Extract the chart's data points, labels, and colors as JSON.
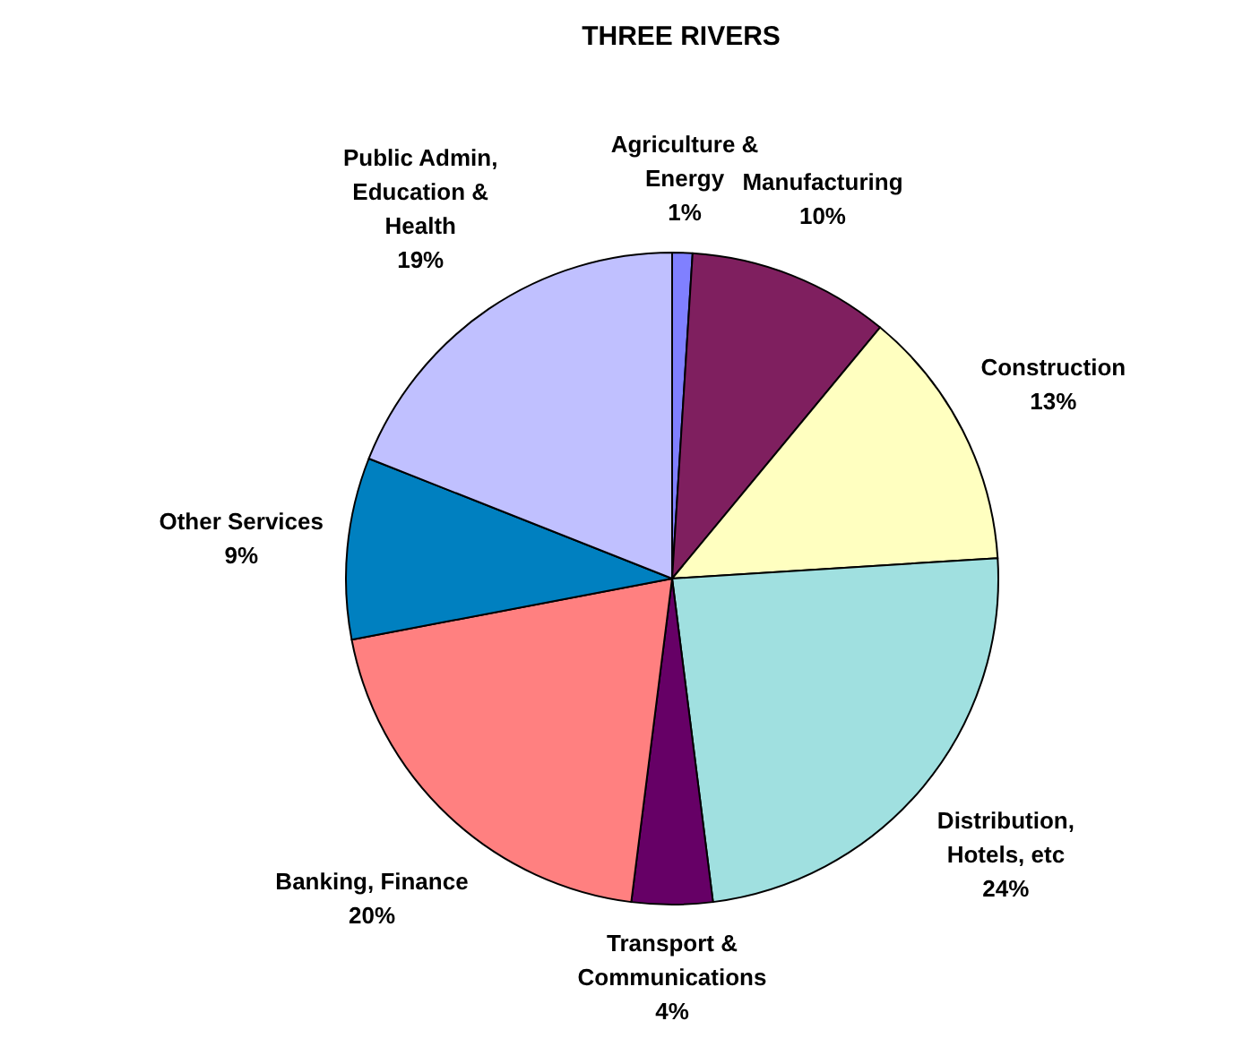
{
  "chart_data": {
    "type": "pie",
    "title": "THREE RIVERS",
    "categories": [
      "Agriculture &\nEnergy",
      "Manufacturing",
      "Construction",
      "Distribution,\nHotels, etc",
      "Transport &\nCommunications",
      "Banking, Finance",
      "Other Services",
      "Public Admin,\nEducation &\nHealth"
    ],
    "values": [
      1,
      10,
      13,
      24,
      4,
      20,
      9,
      19
    ],
    "value_labels": [
      "1%",
      "10%",
      "13%",
      "24%",
      "4%",
      "20%",
      "9%",
      "19%"
    ],
    "colors": [
      "#8080ff",
      "#7f1f5f",
      "#ffffc0",
      "#a0e0e0",
      "#660066",
      "#ff8080",
      "#0080c0",
      "#c0c0ff"
    ],
    "legend": false
  }
}
